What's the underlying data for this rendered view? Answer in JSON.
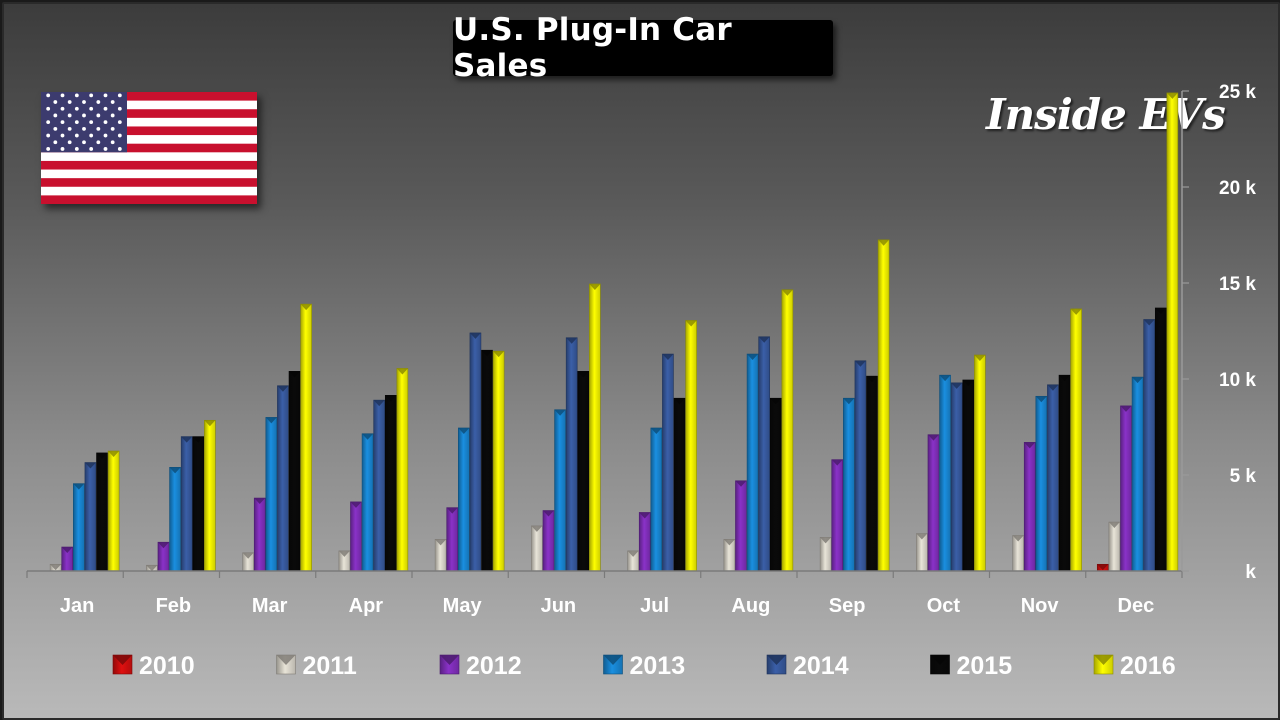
{
  "title": "U.S. Plug-In Car Sales",
  "watermark": "Inside EVs",
  "flag": {
    "icon": "us-flag-icon",
    "stripe_red": "#c8102e",
    "stripe_white": "#ffffff",
    "canton": "#3c3b6e"
  },
  "chart_data": {
    "type": "bar",
    "categories": [
      "Jan",
      "Feb",
      "Mar",
      "Apr",
      "May",
      "Jun",
      "Jul",
      "Aug",
      "Sep",
      "Oct",
      "Nov",
      "Dec"
    ],
    "y_axis": {
      "position": "right",
      "range": [
        0,
        25000
      ],
      "ticks": [
        0,
        5000,
        10000,
        15000,
        20000,
        25000
      ],
      "tick_labels": [
        "k",
        "5 k",
        "10 k",
        "15 k",
        "20 k",
        "25 k"
      ]
    },
    "grid": false,
    "legend": "bottom",
    "series": [
      {
        "name": "2010",
        "color": "#e01010",
        "values": [
          0,
          0,
          0,
          0,
          0,
          0,
          0,
          0,
          0,
          0,
          0,
          350
        ]
      },
      {
        "name": "2011",
        "color": "#e8e4d8",
        "values": [
          350,
          300,
          950,
          1050,
          1650,
          2350,
          1050,
          1650,
          1750,
          1950,
          1850,
          2550
        ]
      },
      {
        "name": "2012",
        "color": "#8a32c8",
        "values": [
          1250,
          1500,
          3800,
          3600,
          3300,
          3150,
          3050,
          4700,
          5800,
          7100,
          6700,
          8600
        ]
      },
      {
        "name": "2013",
        "color": "#1a8fe0",
        "values": [
          4550,
          5400,
          8000,
          7150,
          7450,
          8400,
          7450,
          11300,
          9000,
          10200,
          9100,
          10100
        ]
      },
      {
        "name": "2014",
        "color": "#3b5fa8",
        "values": [
          5650,
          7000,
          9650,
          8900,
          12400,
          12150,
          11300,
          12200,
          10950,
          9800,
          9700,
          13100
        ]
      },
      {
        "name": "2015",
        "color": "#0a0a0a",
        "values": [
          6150,
          7000,
          10400,
          9150,
          11500,
          10400,
          9000,
          9000,
          10150,
          9950,
          10200,
          13700
        ]
      },
      {
        "name": "2016",
        "color": "#ffff00",
        "values": [
          6250,
          7850,
          13900,
          10550,
          11450,
          14950,
          13050,
          14650,
          17250,
          11250,
          13650,
          24900
        ]
      }
    ]
  }
}
